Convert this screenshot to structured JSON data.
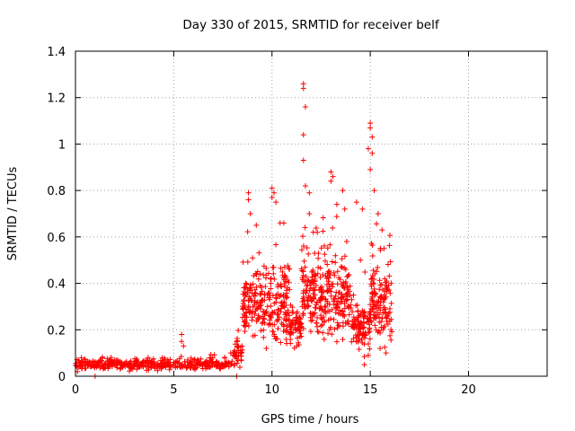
{
  "chart_data": {
    "type": "scatter",
    "title": "Day 330 of 2015, SRMTID for receiver belf",
    "xlabel": "GPS time / hours",
    "ylabel": "SRMTID / TECUs",
    "xlim": [
      0,
      24
    ],
    "ylim": [
      0,
      1.4
    ],
    "x_ticks": [
      0,
      5,
      10,
      15,
      20
    ],
    "x_tick_labels": [
      "0",
      "5",
      "10",
      "15",
      "20"
    ],
    "y_ticks": [
      0,
      0.2,
      0.4,
      0.6,
      0.8,
      1.0,
      1.2,
      1.4
    ],
    "y_tick_labels": [
      "0",
      "0.2",
      "0.4",
      "0.6",
      "0.8",
      "1",
      "1.2",
      "1.4"
    ],
    "grid": true,
    "marker": "+",
    "color": "#ff0000",
    "segments": [
      {
        "x0": 0.0,
        "x1": 8.0,
        "base": 0.05,
        "spread": 0.03,
        "count": 420
      },
      {
        "x0": 8.0,
        "x1": 8.5,
        "base": 0.1,
        "spread": 0.08,
        "count": 40
      },
      {
        "x0": 8.5,
        "x1": 10.9,
        "base": 0.3,
        "spread": 0.22,
        "count": 260
      },
      {
        "x0": 10.9,
        "x1": 11.5,
        "base": 0.2,
        "spread": 0.1,
        "count": 60
      },
      {
        "x0": 11.5,
        "x1": 12.2,
        "base": 0.35,
        "spread": 0.22,
        "count": 90
      },
      {
        "x0": 12.2,
        "x1": 14.0,
        "base": 0.33,
        "spread": 0.25,
        "count": 200
      },
      {
        "x0": 14.0,
        "x1": 15.0,
        "base": 0.22,
        "spread": 0.15,
        "count": 100
      },
      {
        "x0": 15.0,
        "x1": 16.1,
        "base": 0.32,
        "spread": 0.22,
        "count": 130
      }
    ],
    "points": [
      [
        0.3,
        0.08
      ],
      [
        1.0,
        0.0
      ],
      [
        0.1,
        0.02
      ],
      [
        8.2,
        0.0
      ],
      [
        8.8,
        0.79
      ],
      [
        8.8,
        0.76
      ],
      [
        8.9,
        0.7
      ],
      [
        9.2,
        0.65
      ],
      [
        10.0,
        0.81
      ],
      [
        10.1,
        0.79
      ],
      [
        10.0,
        0.77
      ],
      [
        10.2,
        0.75
      ],
      [
        10.6,
        0.66
      ],
      [
        11.6,
        1.26
      ],
      [
        11.6,
        1.24
      ],
      [
        11.7,
        1.16
      ],
      [
        11.6,
        1.04
      ],
      [
        11.6,
        0.93
      ],
      [
        11.7,
        0.82
      ],
      [
        11.9,
        0.79
      ],
      [
        11.9,
        0.7
      ],
      [
        12.1,
        0.62
      ],
      [
        13.0,
        0.88
      ],
      [
        13.1,
        0.86
      ],
      [
        13.0,
        0.84
      ],
      [
        13.3,
        0.74
      ],
      [
        13.6,
        0.8
      ],
      [
        13.7,
        0.72
      ],
      [
        13.8,
        0.58
      ],
      [
        14.3,
        0.75
      ],
      [
        14.6,
        0.72
      ],
      [
        14.5,
        0.5
      ],
      [
        15.0,
        1.09
      ],
      [
        15.0,
        1.07
      ],
      [
        15.1,
        1.03
      ],
      [
        14.9,
        0.98
      ],
      [
        15.1,
        0.96
      ],
      [
        15.0,
        0.89
      ],
      [
        15.2,
        0.8
      ],
      [
        15.4,
        0.7
      ],
      [
        15.6,
        0.63
      ],
      [
        15.7,
        0.55
      ],
      [
        15.4,
        0.32
      ],
      [
        15.3,
        0.2
      ],
      [
        15.5,
        0.12
      ],
      [
        15.8,
        0.1
      ],
      [
        14.7,
        0.05
      ],
      [
        14.9,
        0.09
      ],
      [
        5.4,
        0.18
      ],
      [
        5.4,
        0.15
      ],
      [
        5.5,
        0.13
      ],
      [
        7.9,
        0.1
      ]
    ]
  }
}
